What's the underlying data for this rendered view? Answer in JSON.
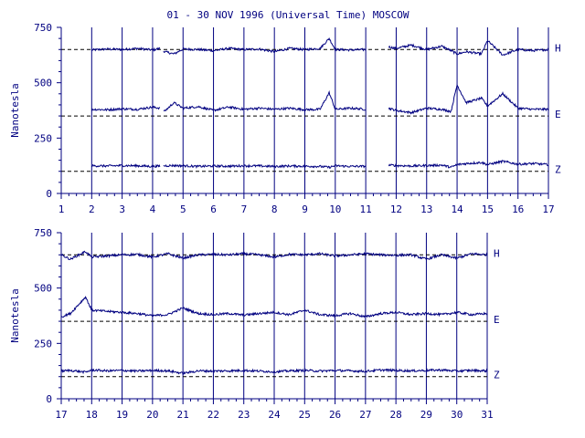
{
  "title": "01 - 30 NOV 1996 (Universal Time) MOSCOW",
  "colors": {
    "axis": "#000080",
    "trace": "#000080",
    "baseline": "#000000",
    "background": "#ffffff"
  },
  "chart_data": [
    {
      "type": "line",
      "ylabel": "Nanotesla",
      "ylim": [
        0,
        750
      ],
      "yticks": [
        0,
        250,
        500,
        750
      ],
      "xlim": [
        1,
        17
      ],
      "xticks": [
        1,
        2,
        3,
        4,
        5,
        6,
        7,
        8,
        9,
        10,
        11,
        12,
        13,
        14,
        15,
        16,
        17
      ],
      "day_gridlines": [
        2,
        3,
        4,
        5,
        6,
        7,
        8,
        9,
        10,
        11,
        12,
        13,
        14,
        15,
        16,
        17
      ],
      "data_gaps": [
        [
          1,
          2
        ],
        [
          4.25,
          4.35
        ],
        [
          11,
          11.75
        ]
      ],
      "series": [
        {
          "name": "H",
          "baseline": 650,
          "x": [
            2,
            2.5,
            3,
            3.5,
            4,
            4.25,
            4.4,
            4.7,
            5,
            5.5,
            6,
            6.5,
            7,
            7.5,
            8,
            8.5,
            9,
            9.5,
            9.8,
            10,
            10.5,
            11,
            11.75,
            12,
            12.5,
            13,
            13.5,
            13.8,
            14,
            14.3,
            14.8,
            15,
            15.5,
            16,
            16.5,
            17
          ],
          "values": [
            648,
            652,
            650,
            655,
            648,
            655,
            640,
            630,
            652,
            650,
            645,
            655,
            650,
            652,
            640,
            655,
            650,
            655,
            700,
            650,
            648,
            650,
            662,
            655,
            670,
            650,
            665,
            645,
            630,
            640,
            630,
            690,
            625,
            650,
            645,
            650
          ]
        },
        {
          "name": "E",
          "baseline": 350,
          "x": [
            2,
            2.5,
            3,
            3.5,
            4,
            4.25,
            4.4,
            4.7,
            5,
            5.5,
            6,
            6.5,
            7,
            7.5,
            8,
            8.5,
            9,
            9.5,
            9.8,
            10,
            10.5,
            11,
            11.75,
            12,
            12.5,
            13,
            13.5,
            13.8,
            14,
            14.3,
            14.8,
            15,
            15.5,
            16,
            16.5,
            17
          ],
          "values": [
            380,
            378,
            382,
            380,
            390,
            385,
            372,
            410,
            385,
            392,
            375,
            390,
            380,
            385,
            380,
            385,
            378,
            380,
            455,
            380,
            385,
            380,
            385,
            375,
            365,
            385,
            380,
            370,
            490,
            410,
            430,
            395,
            450,
            385,
            380,
            380
          ]
        },
        {
          "name": "Z",
          "baseline": 100,
          "x": [
            2,
            2.5,
            3,
            3.5,
            4,
            4.25,
            4.4,
            4.7,
            5,
            5.5,
            6,
            6.5,
            7,
            7.5,
            8,
            8.5,
            9,
            9.5,
            9.8,
            10,
            10.5,
            11,
            11.75,
            12,
            12.5,
            13,
            13.5,
            13.8,
            14,
            14.3,
            14.8,
            15,
            15.5,
            16,
            16.5,
            17
          ],
          "values": [
            125,
            124,
            126,
            125,
            122,
            124,
            125,
            126,
            125,
            122,
            124,
            123,
            125,
            124,
            122,
            124,
            123,
            122,
            118,
            125,
            122,
            123,
            128,
            126,
            124,
            126,
            128,
            118,
            130,
            135,
            140,
            130,
            145,
            132,
            135,
            130
          ]
        }
      ]
    },
    {
      "type": "line",
      "ylabel": "Nanotesla",
      "ylim": [
        0,
        750
      ],
      "yticks": [
        0,
        250,
        500,
        750
      ],
      "xlim": [
        17,
        31
      ],
      "xticks": [
        17,
        18,
        19,
        20,
        21,
        22,
        23,
        24,
        25,
        26,
        27,
        28,
        29,
        30,
        31
      ],
      "day_gridlines": [
        18,
        19,
        20,
        21,
        22,
        23,
        24,
        25,
        26,
        27,
        28,
        29,
        30,
        31
      ],
      "data_gaps": [],
      "series": [
        {
          "name": "H",
          "baseline": 650,
          "x": [
            17,
            17.3,
            17.8,
            18,
            18.5,
            19,
            19.5,
            20,
            20.5,
            21,
            21.5,
            22,
            22.5,
            23,
            23.5,
            24,
            24.5,
            25,
            25.5,
            26,
            26.5,
            27,
            27.5,
            28,
            28.5,
            29,
            29.5,
            30,
            30.5,
            31
          ],
          "values": [
            650,
            630,
            665,
            640,
            645,
            650,
            652,
            640,
            655,
            635,
            650,
            652,
            650,
            655,
            650,
            640,
            652,
            650,
            655,
            645,
            650,
            655,
            650,
            648,
            650,
            630,
            650,
            635,
            655,
            650
          ]
        },
        {
          "name": "E",
          "baseline": 350,
          "x": [
            17,
            17.3,
            17.8,
            18,
            18.5,
            19,
            19.5,
            20,
            20.5,
            21,
            21.5,
            22,
            22.5,
            23,
            23.5,
            24,
            24.5,
            25,
            25.5,
            26,
            26.5,
            27,
            27.5,
            28,
            28.5,
            29,
            29.5,
            30,
            30.5,
            31
          ],
          "values": [
            370,
            385,
            460,
            400,
            395,
            390,
            385,
            375,
            380,
            410,
            385,
            380,
            385,
            378,
            385,
            390,
            380,
            400,
            380,
            375,
            385,
            370,
            385,
            390,
            380,
            385,
            380,
            390,
            380,
            385
          ]
        },
        {
          "name": "Z",
          "baseline": 100,
          "x": [
            17,
            17.3,
            17.8,
            18,
            18.5,
            19,
            19.5,
            20,
            20.5,
            21,
            21.5,
            22,
            22.5,
            23,
            23.5,
            24,
            24.5,
            25,
            25.5,
            26,
            26.5,
            27,
            27.5,
            28,
            28.5,
            29,
            29.5,
            30,
            30.5,
            31
          ],
          "values": [
            125,
            128,
            120,
            130,
            126,
            128,
            125,
            128,
            126,
            115,
            126,
            125,
            126,
            128,
            125,
            122,
            126,
            128,
            125,
            128,
            126,
            124,
            130,
            128,
            126,
            128,
            130,
            125,
            128,
            126
          ]
        }
      ]
    }
  ]
}
